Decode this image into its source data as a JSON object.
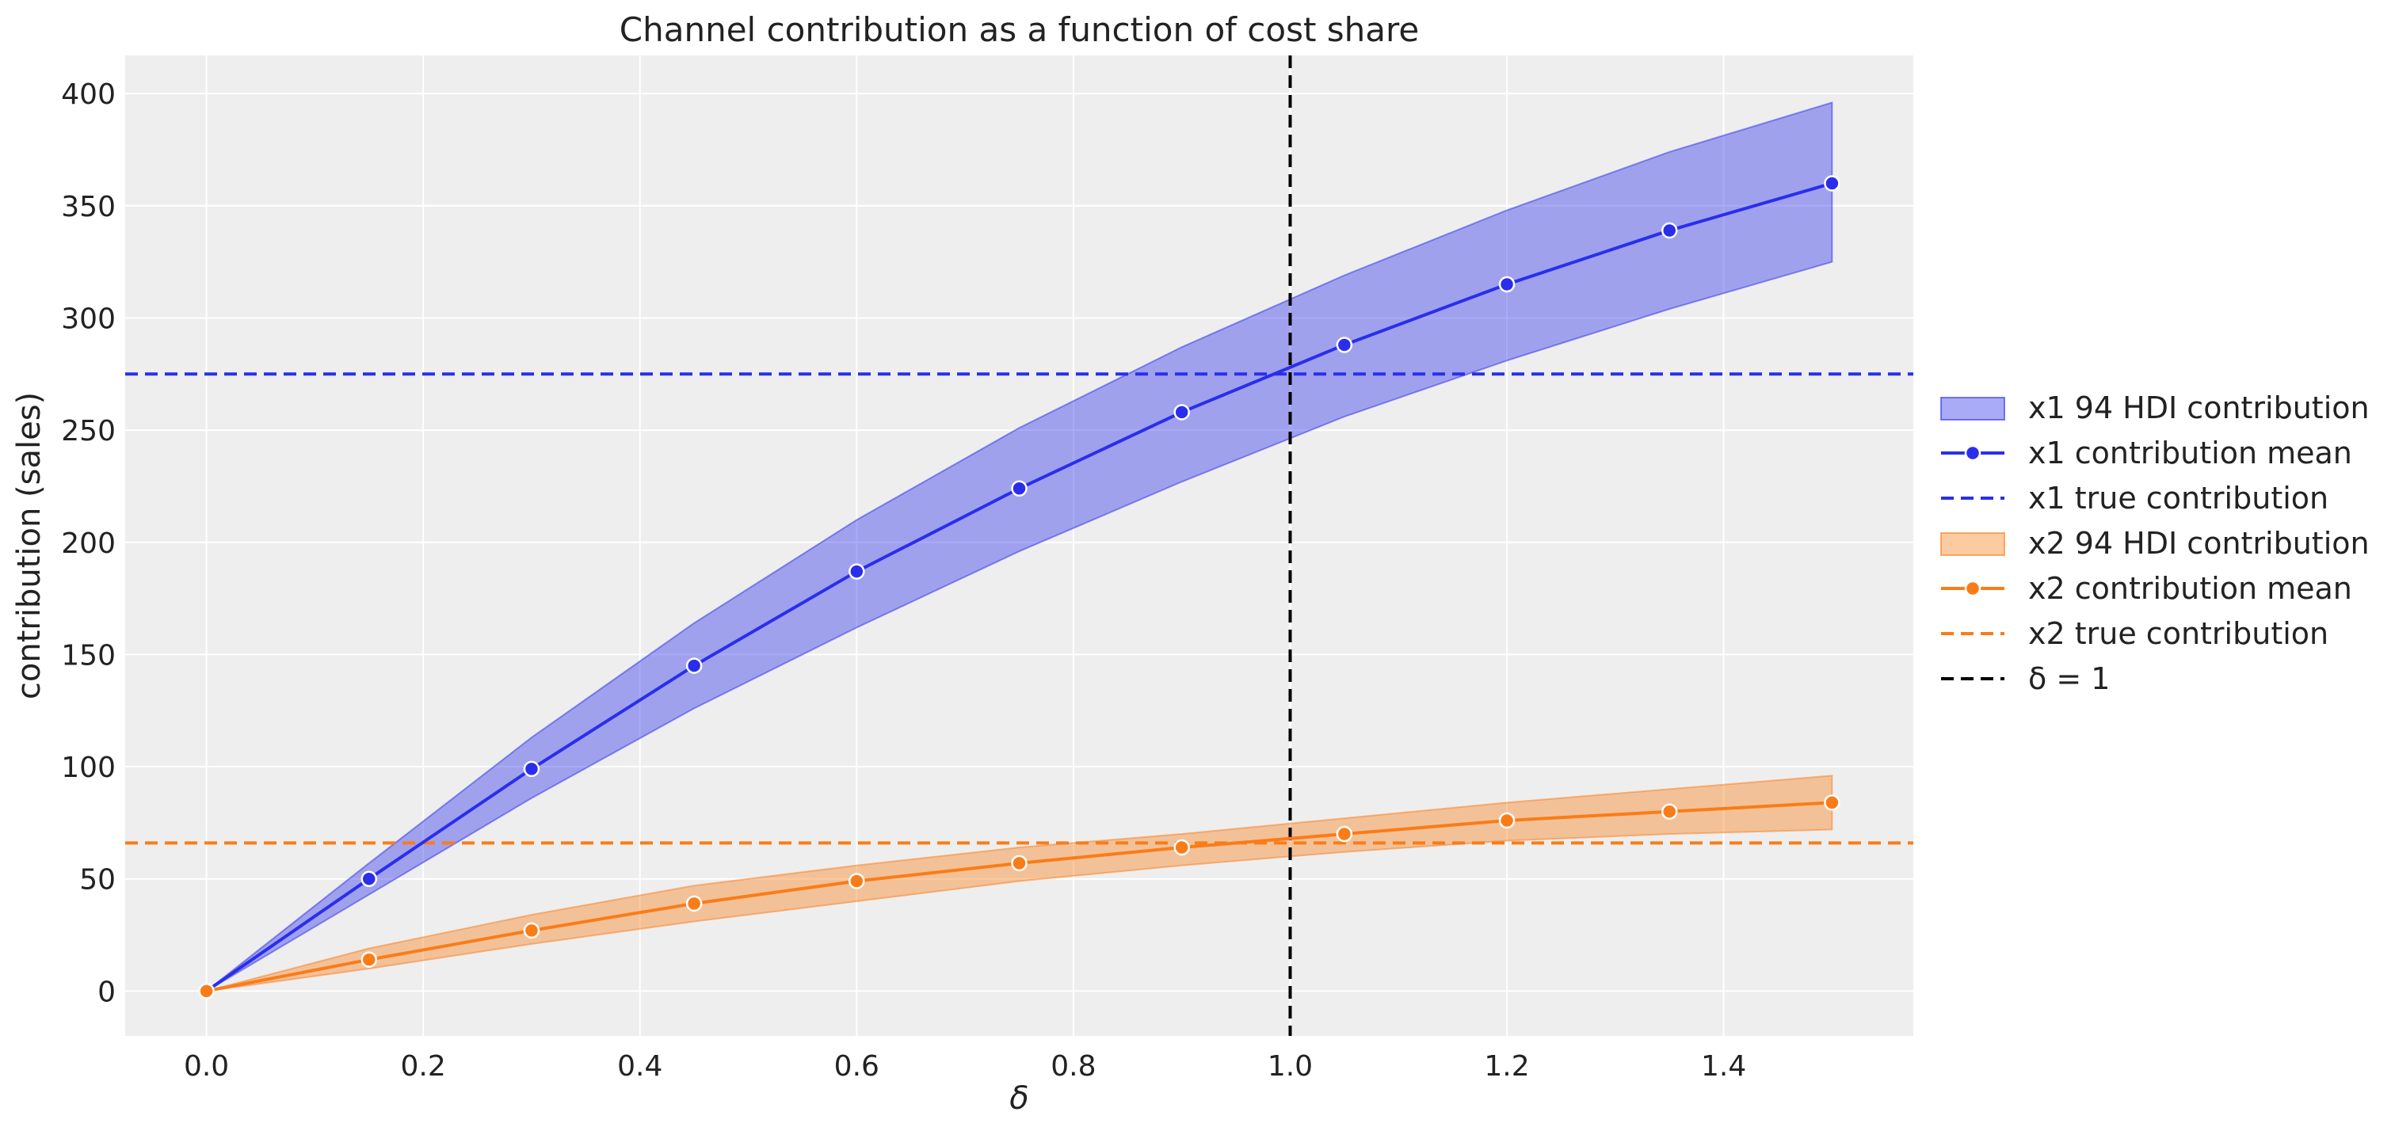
{
  "chart_data": {
    "type": "line",
    "title": "Channel contribution as a function of cost share",
    "xlabel": "δ",
    "ylabel": "contribution (sales)",
    "xlim": [
      -0.075,
      1.575
    ],
    "ylim": [
      -20,
      417
    ],
    "xticks": [
      0.0,
      0.2,
      0.4,
      0.6,
      0.8,
      1.0,
      1.2,
      1.4
    ],
    "xtick_labels": [
      "0.0",
      "0.2",
      "0.4",
      "0.6",
      "0.8",
      "1.0",
      "1.2",
      "1.4"
    ],
    "yticks": [
      0,
      50,
      100,
      150,
      200,
      250,
      300,
      350,
      400
    ],
    "ytick_labels": [
      "0",
      "50",
      "100",
      "150",
      "200",
      "250",
      "300",
      "350",
      "400"
    ],
    "grid": true,
    "legend_position": "right",
    "x": [
      0.0,
      0.15,
      0.3,
      0.45,
      0.6,
      0.75,
      0.9,
      1.05,
      1.2,
      1.35,
      1.5
    ],
    "series": [
      {
        "name": "x1 contribution mean",
        "band_name": "x1 94 HDI contribution",
        "true_name": "x1 true contribution",
        "color": "#2a2eec",
        "mean": [
          0,
          50,
          99,
          145,
          187,
          224,
          258,
          288,
          315,
          339,
          360
        ],
        "hdi_lower": [
          0,
          43,
          86,
          126,
          162,
          196,
          227,
          256,
          281,
          304,
          325
        ],
        "hdi_upper": [
          0,
          57,
          113,
          164,
          210,
          251,
          287,
          319,
          348,
          374,
          396
        ],
        "true_value": 275
      },
      {
        "name": "x2 contribution mean",
        "band_name": "x2 94 HDI contribution",
        "true_name": "x2 true contribution",
        "color": "#fa7c17",
        "mean": [
          0,
          14,
          27,
          39,
          49,
          57,
          64,
          70,
          76,
          80,
          84
        ],
        "hdi_lower": [
          0,
          10,
          21,
          31,
          40,
          49,
          56,
          62,
          67,
          70,
          72
        ],
        "hdi_upper": [
          0,
          19,
          34,
          47,
          56,
          64,
          70,
          77,
          84,
          90,
          96
        ],
        "true_value": 66
      }
    ],
    "vline": {
      "x": 1.0,
      "label": "δ = 1",
      "color": "#000000"
    }
  },
  "legend": [
    {
      "label": "x1 94 HDI contribution",
      "kind": "band",
      "color": "#2a2eec"
    },
    {
      "label": "x1 contribution mean",
      "kind": "line-marker",
      "color": "#2a2eec"
    },
    {
      "label": "x1 true contribution",
      "kind": "dashed",
      "color": "#2a2eec"
    },
    {
      "label": "x2 94 HDI contribution",
      "kind": "band",
      "color": "#fa7c17"
    },
    {
      "label": "x2 contribution mean",
      "kind": "line-marker",
      "color": "#fa7c17"
    },
    {
      "label": "x2 true contribution",
      "kind": "dashed",
      "color": "#fa7c17"
    },
    {
      "label": "δ = 1",
      "kind": "dashed",
      "color": "#000000"
    }
  ],
  "colors": {
    "plot_background": "#eeeeee",
    "grid": "#ffffff"
  }
}
